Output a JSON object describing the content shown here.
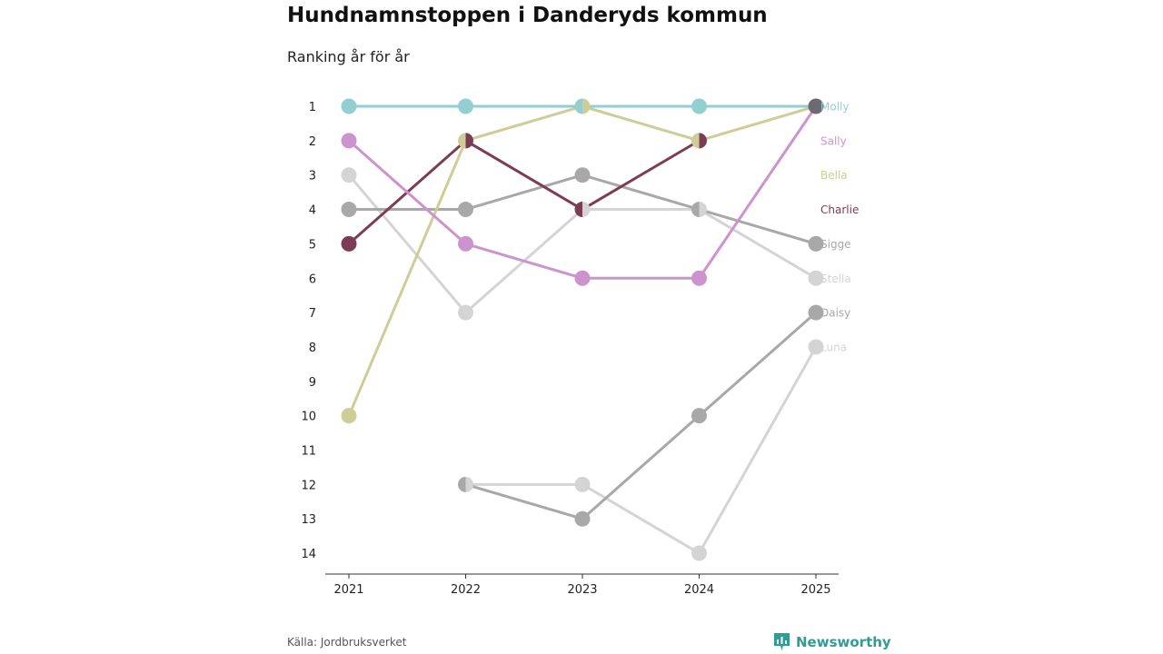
{
  "chart_data": {
    "type": "line",
    "title": "Hundnamnstoppen i Danderyds kommun",
    "subtitle": "Ranking år för år",
    "xlabel": "",
    "ylabel": "",
    "y_reversed": true,
    "ylim": [
      1,
      14
    ],
    "grid": false,
    "legend": "direct labels at right",
    "categories": [
      "2021",
      "2022",
      "2023",
      "2024",
      "2025"
    ],
    "y_ticks": [
      "1",
      "2",
      "3",
      "4",
      "5",
      "6",
      "7",
      "8",
      "9",
      "10",
      "11",
      "12",
      "13",
      "14"
    ],
    "series": [
      {
        "name": "Luna",
        "color": "#d4d4d4",
        "values": [
          null,
          12,
          12,
          14,
          8
        ]
      },
      {
        "name": "Daisy",
        "color": "#a8a8a8",
        "values": [
          null,
          12,
          13,
          10,
          7
        ]
      },
      {
        "name": "Stella",
        "color": "#d4d4d4",
        "values": [
          3,
          7,
          4,
          4,
          6
        ]
      },
      {
        "name": "Sigge",
        "color": "#a8a8a8",
        "values": [
          4,
          4,
          3,
          4,
          5
        ]
      },
      {
        "name": "Charlie",
        "color": "#7d3c55",
        "values": [
          5,
          2,
          4,
          2,
          null
        ]
      },
      {
        "name": "Bella",
        "color": "#cfcd97",
        "values": [
          10,
          2,
          1,
          2,
          1
        ]
      },
      {
        "name": "Sally",
        "color": "#cc94cf",
        "values": [
          2,
          5,
          6,
          6,
          1
        ]
      },
      {
        "name": "Molly",
        "color": "#93cfd1",
        "values": [
          1,
          1,
          1,
          1,
          1
        ]
      }
    ],
    "shared_points_color": "#6e6a72"
  },
  "footer": {
    "source": "Källa: Jordbruksverket",
    "brand": "Newsworthy"
  }
}
